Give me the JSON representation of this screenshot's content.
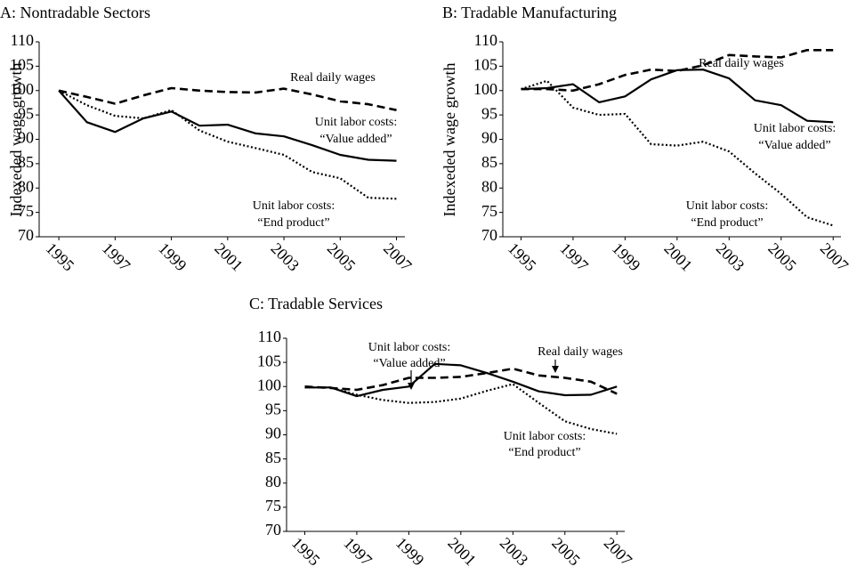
{
  "chart_data": [
    {
      "type": "line",
      "title": "A: Nontradable Sectors",
      "y_label": "Indexeded wage growth",
      "x": [
        1995,
        1996,
        1997,
        1998,
        1999,
        2000,
        2001,
        2002,
        2003,
        2004,
        2005,
        2006,
        2007
      ],
      "xlim": [
        1994.3,
        2007.3
      ],
      "xticks": [
        1995,
        1997,
        1999,
        2001,
        2003,
        2005,
        2007
      ],
      "ylim": [
        70,
        110
      ],
      "yticks": [
        70,
        75,
        80,
        85,
        90,
        95,
        100,
        105,
        110
      ],
      "series": [
        {
          "color": "#000000",
          "style": "dashed",
          "values": [
            100,
            98.7,
            97.3,
            99,
            100.5,
            100,
            99.7,
            99.6,
            100.4,
            99.2,
            97.8,
            97.2,
            96
          ]
        },
        {
          "color": "#000000",
          "style": "solid",
          "values": [
            100,
            93.5,
            91.5,
            94.3,
            95.7,
            92.8,
            93,
            91.2,
            90.6,
            88.8,
            86.8,
            85.8,
            85.6
          ]
        },
        {
          "color": "#000000",
          "style": "dotted",
          "values": [
            100,
            97,
            94.8,
            94.3,
            96,
            91.8,
            89.5,
            88.2,
            86.8,
            83.3,
            82,
            78,
            77.8
          ]
        }
      ],
      "annotations": [
        [
          "Real daily wages"
        ],
        [
          "Unit labor costs:",
          "“Value added”"
        ],
        [
          "Unit labor costs:",
          "“End product”"
        ]
      ]
    },
    {
      "type": "line",
      "title": "B: Tradable Manufacturing",
      "y_label": "Indexeded wage growth",
      "x": [
        1995,
        1996,
        1997,
        1998,
        1999,
        2000,
        2001,
        2002,
        2003,
        2004,
        2005,
        2006,
        2007
      ],
      "xlim": [
        1994.3,
        2007.3
      ],
      "xticks": [
        1995,
        1997,
        1999,
        2001,
        2003,
        2005,
        2007
      ],
      "ylim": [
        70,
        110
      ],
      "yticks": [
        70,
        75,
        80,
        85,
        90,
        95,
        100,
        105,
        110
      ],
      "series": [
        {
          "color": "#000000",
          "style": "dashed",
          "values": [
            100.3,
            100.3,
            100,
            101.3,
            103.2,
            104.3,
            104,
            105.2,
            107.3,
            107,
            106.8,
            108.3,
            108.3
          ]
        },
        {
          "color": "#000000",
          "style": "solid",
          "values": [
            100.3,
            100.5,
            101.3,
            97.6,
            98.8,
            102.3,
            104.2,
            104.3,
            102.5,
            98,
            97,
            93.8,
            93.5
          ]
        },
        {
          "color": "#000000",
          "style": "dotted",
          "values": [
            100.3,
            102,
            96.5,
            95,
            95.2,
            89,
            88.7,
            89.5,
            87.5,
            83,
            78.8,
            74,
            72.3
          ]
        }
      ],
      "annotations": [
        [
          "Real daily wages"
        ],
        [
          "Unit labor costs:",
          "“Value added”"
        ],
        [
          "Unit labor costs:",
          "“End product”"
        ]
      ]
    },
    {
      "type": "line",
      "title": "C: Tradable Services",
      "x": [
        1995,
        1996,
        1997,
        1998,
        1999,
        2000,
        2001,
        2002,
        2003,
        2004,
        2005,
        2006,
        2007
      ],
      "xlim": [
        1994.3,
        2007.3
      ],
      "xticks": [
        1995,
        1997,
        1999,
        2001,
        2003,
        2005,
        2007
      ],
      "ylim": [
        70,
        110
      ],
      "yticks": [
        70,
        75,
        80,
        85,
        90,
        95,
        100,
        105,
        110
      ],
      "series": [
        {
          "color": "#000000",
          "style": "dashed",
          "values": [
            100,
            99.7,
            99.3,
            100.3,
            101.8,
            101.8,
            102,
            102.8,
            103.7,
            102.3,
            101.8,
            101,
            98.5
          ]
        },
        {
          "color": "#000000",
          "style": "solid",
          "values": [
            99.8,
            99.8,
            98,
            99.3,
            100,
            104.7,
            104.4,
            102.8,
            101,
            99,
            98.2,
            98.3,
            100
          ]
        },
        {
          "color": "#000000",
          "style": "dotted",
          "values": [
            99.8,
            99.8,
            98.3,
            97.2,
            96.6,
            96.8,
            97.5,
            99.1,
            100.5,
            96.6,
            92.8,
            91.2,
            90.2
          ]
        }
      ],
      "annotations": [
        [
          "Real daily wages"
        ],
        [
          "Unit labor costs:",
          "“Value added”"
        ],
        [
          "Unit labor costs:",
          "“End product”"
        ]
      ]
    }
  ]
}
